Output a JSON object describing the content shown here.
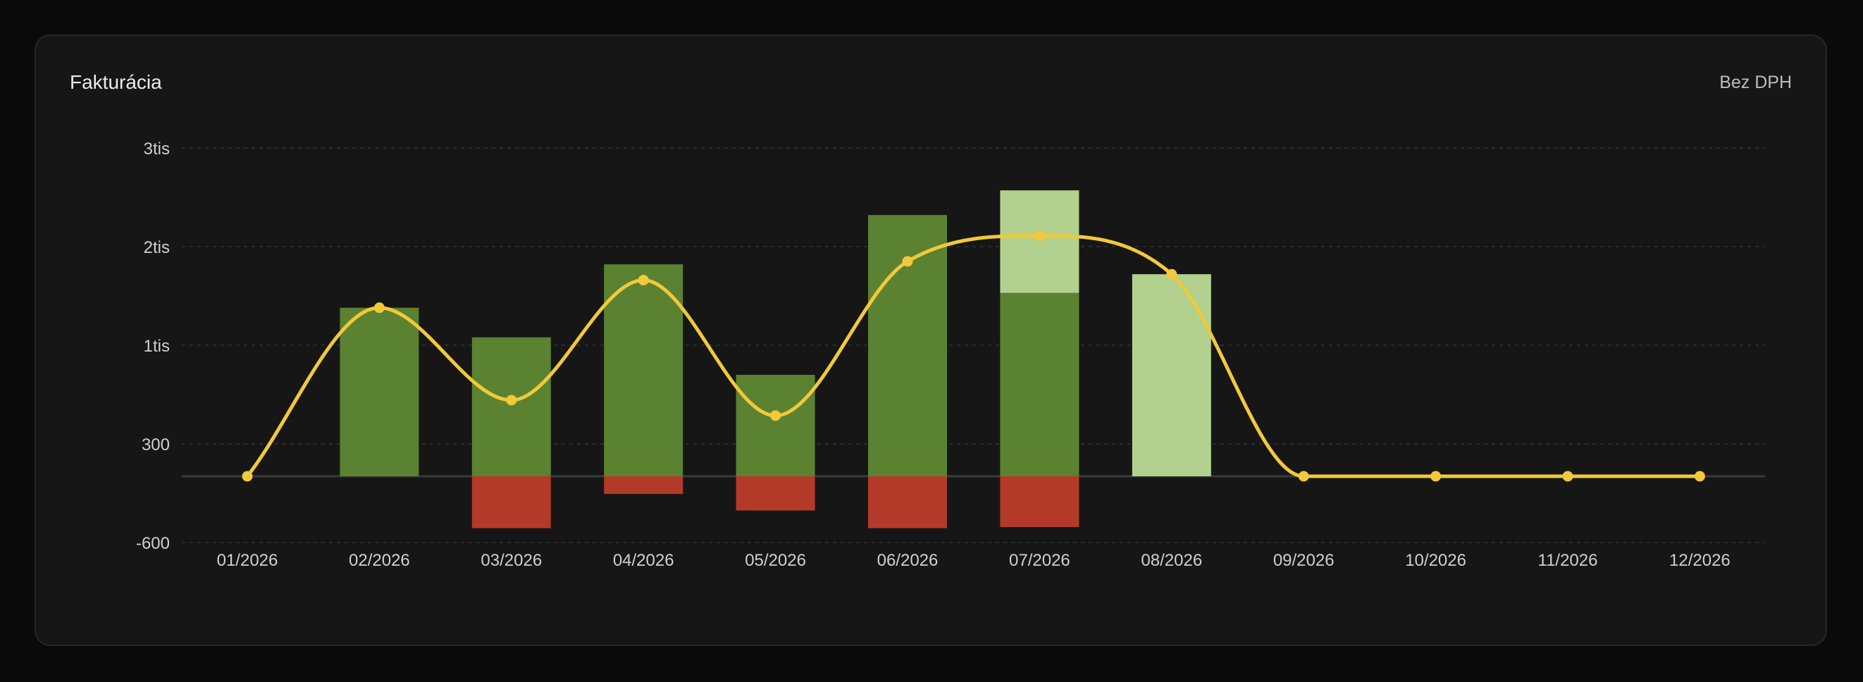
{
  "card": {
    "title": "Fakturácia",
    "note": "Bez DPH"
  },
  "colors": {
    "background": "#0a0a0a",
    "card": "#161616",
    "income": "#5b8230",
    "income_planned": "#b2d18e",
    "expense": "#b33a29",
    "balance_line": "#f2c93a",
    "grid": "#333333",
    "zero_line": "#3a3a3a",
    "tick_text": "#d0d0d0"
  },
  "chart_data": {
    "type": "bar",
    "title": "Fakturácia",
    "xlabel": "",
    "ylabel": "",
    "ylim": [
      -600,
      3000
    ],
    "yticks": [
      {
        "value": -600,
        "label": "-600"
      },
      {
        "value": 300,
        "label": "300"
      },
      {
        "value": 1000,
        "label": "1tis"
      },
      {
        "value": 2000,
        "label": "2tis"
      },
      {
        "value": 3000,
        "label": "3tis"
      }
    ],
    "grid": true,
    "legend": "none",
    "categories": [
      "01/2026",
      "02/2026",
      "03/2026",
      "04/2026",
      "05/2026",
      "06/2026",
      "07/2026",
      "08/2026",
      "09/2026",
      "10/2026",
      "11/2026",
      "12/2026"
    ],
    "series": [
      {
        "key": "income",
        "type": "bar",
        "stack": "pos",
        "values": [
          0,
          1380,
          1080,
          1820,
          790,
          2320,
          1530,
          0,
          0,
          0,
          0,
          0
        ]
      },
      {
        "key": "income_planned",
        "type": "bar",
        "stack": "pos",
        "values": [
          0,
          0,
          0,
          0,
          0,
          0,
          1040,
          1720,
          0,
          0,
          0,
          0
        ]
      },
      {
        "key": "expense",
        "type": "bar",
        "stack": "neg",
        "values": [
          0,
          0,
          -470,
          -160,
          -310,
          -470,
          -460,
          0,
          0,
          0,
          0,
          0
        ]
      },
      {
        "key": "balance_line",
        "type": "line",
        "smooth": true,
        "values": [
          0,
          1380,
          610,
          1660,
          500,
          1850,
          2110,
          1720,
          0,
          0,
          0,
          0
        ]
      }
    ]
  }
}
